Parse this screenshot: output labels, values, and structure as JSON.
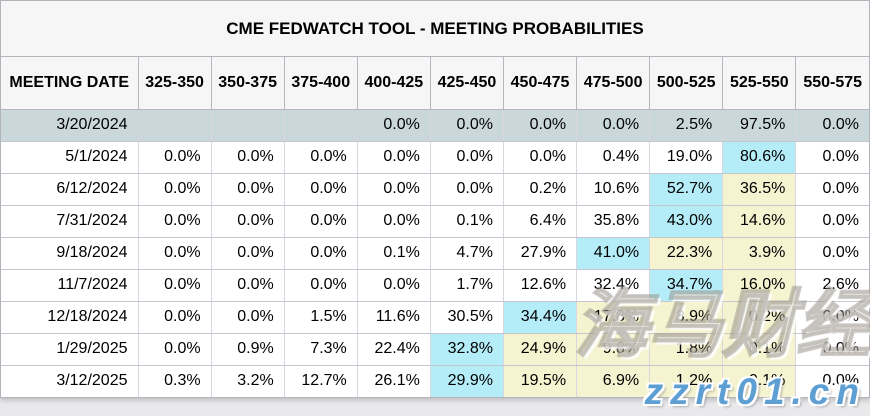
{
  "title": "CME FEDWATCH TOOL - MEETING PROBABILITIES",
  "watermark": {
    "brand": "海马财经",
    "url": "zzrt01.cn"
  },
  "colors": {
    "highlight_cyan": "#b4edf7",
    "highlight_yellow": "#f5f3d0",
    "past_row": "#cbd8db",
    "header_bg": "#f6f6f7",
    "watermark_blue": "#5d9fd3"
  },
  "chart_data": {
    "type": "table",
    "title": "CME FEDWATCH TOOL - MEETING PROBABILITIES",
    "columns": [
      "MEETING DATE",
      "325-350",
      "350-375",
      "375-400",
      "400-425",
      "425-450",
      "450-475",
      "475-500",
      "500-525",
      "525-550",
      "550-575"
    ],
    "rows": [
      {
        "date": "3/20/2024",
        "values": [
          "",
          "",
          "",
          "0.0%",
          "0.0%",
          "0.0%",
          "0.0%",
          "2.5%",
          "97.5%",
          "0.0%"
        ],
        "styles": [
          "",
          "",
          "",
          "",
          "",
          "",
          "",
          "",
          "",
          ""
        ],
        "past": true
      },
      {
        "date": "5/1/2024",
        "values": [
          "0.0%",
          "0.0%",
          "0.0%",
          "0.0%",
          "0.0%",
          "0.0%",
          "0.4%",
          "19.0%",
          "80.6%",
          "0.0%"
        ],
        "styles": [
          "",
          "",
          "",
          "",
          "",
          "",
          "",
          "",
          "cyan",
          ""
        ],
        "past": false
      },
      {
        "date": "6/12/2024",
        "values": [
          "0.0%",
          "0.0%",
          "0.0%",
          "0.0%",
          "0.0%",
          "0.2%",
          "10.6%",
          "52.7%",
          "36.5%",
          "0.0%"
        ],
        "styles": [
          "",
          "",
          "",
          "",
          "",
          "",
          "",
          "cyan",
          "yellow",
          ""
        ],
        "past": false
      },
      {
        "date": "7/31/2024",
        "values": [
          "0.0%",
          "0.0%",
          "0.0%",
          "0.0%",
          "0.1%",
          "6.4%",
          "35.8%",
          "43.0%",
          "14.6%",
          "0.0%"
        ],
        "styles": [
          "",
          "",
          "",
          "",
          "",
          "",
          "",
          "cyan",
          "yellow",
          ""
        ],
        "past": false
      },
      {
        "date": "9/18/2024",
        "values": [
          "0.0%",
          "0.0%",
          "0.0%",
          "0.1%",
          "4.7%",
          "27.9%",
          "41.0%",
          "22.3%",
          "3.9%",
          "0.0%"
        ],
        "styles": [
          "",
          "",
          "",
          "",
          "",
          "",
          "cyan",
          "yellow",
          "yellow",
          ""
        ],
        "past": false
      },
      {
        "date": "11/7/2024",
        "values": [
          "0.0%",
          "0.0%",
          "0.0%",
          "0.0%",
          "1.7%",
          "12.6%",
          "32.4%",
          "34.7%",
          "16.0%",
          "2.6%"
        ],
        "styles": [
          "",
          "",
          "",
          "",
          "",
          "",
          "",
          "cyan",
          "yellow",
          ""
        ],
        "past": false
      },
      {
        "date": "12/18/2024",
        "values": [
          "0.0%",
          "0.0%",
          "1.5%",
          "11.6%",
          "30.5%",
          "34.4%",
          "17.8%",
          "3.9%",
          "0.2%",
          "0.0%"
        ],
        "styles": [
          "",
          "",
          "",
          "",
          "",
          "cyan",
          "yellow",
          "yellow",
          "yellow",
          ""
        ],
        "past": false
      },
      {
        "date": "1/29/2025",
        "values": [
          "0.0%",
          "0.9%",
          "7.3%",
          "22.4%",
          "32.8%",
          "24.9%",
          "9.8%",
          "1.8%",
          "0.1%",
          "0.0%"
        ],
        "styles": [
          "",
          "",
          "",
          "",
          "cyan",
          "yellow",
          "yellow",
          "yellow",
          "yellow",
          ""
        ],
        "past": false
      },
      {
        "date": "3/12/2025",
        "values": [
          "0.3%",
          "3.2%",
          "12.7%",
          "26.1%",
          "29.9%",
          "19.5%",
          "6.9%",
          "1.2%",
          "0.1%",
          "0.0%"
        ],
        "styles": [
          "",
          "",
          "",
          "",
          "cyan",
          "yellow",
          "yellow",
          "yellow",
          "yellow",
          ""
        ],
        "past": false
      }
    ]
  }
}
